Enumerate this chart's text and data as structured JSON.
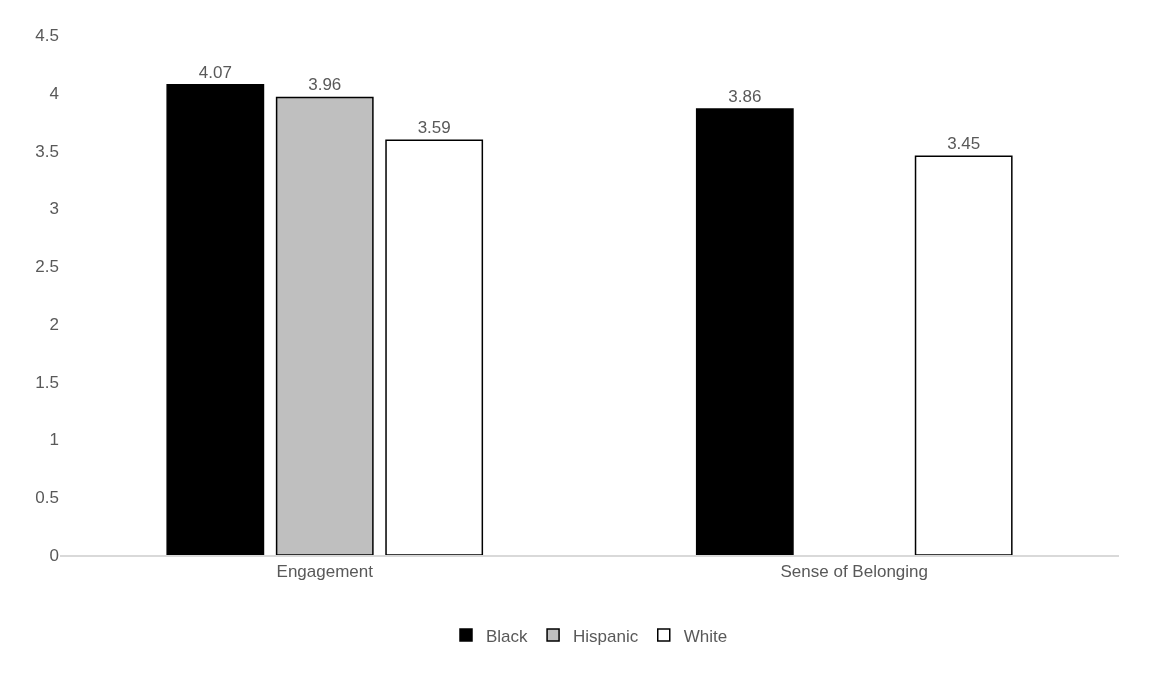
{
  "chart_data": {
    "type": "bar",
    "categories": [
      "Engagement",
      "Sense of Belonging"
    ],
    "series": [
      {
        "name": "Black",
        "color": "#000000",
        "values": [
          4.07,
          3.86
        ]
      },
      {
        "name": "Hispanic",
        "color": "#bfbfbf",
        "values": [
          3.96,
          null
        ]
      },
      {
        "name": "White",
        "color": "#ffffff",
        "values": [
          3.59,
          3.45
        ]
      }
    ],
    "ylim": [
      0,
      4.5
    ],
    "yticks": [
      0,
      0.5,
      1,
      1.5,
      2,
      2.5,
      3,
      3.5,
      4,
      4.5
    ],
    "grid": false,
    "legend": "bottom",
    "data_labels": true
  }
}
